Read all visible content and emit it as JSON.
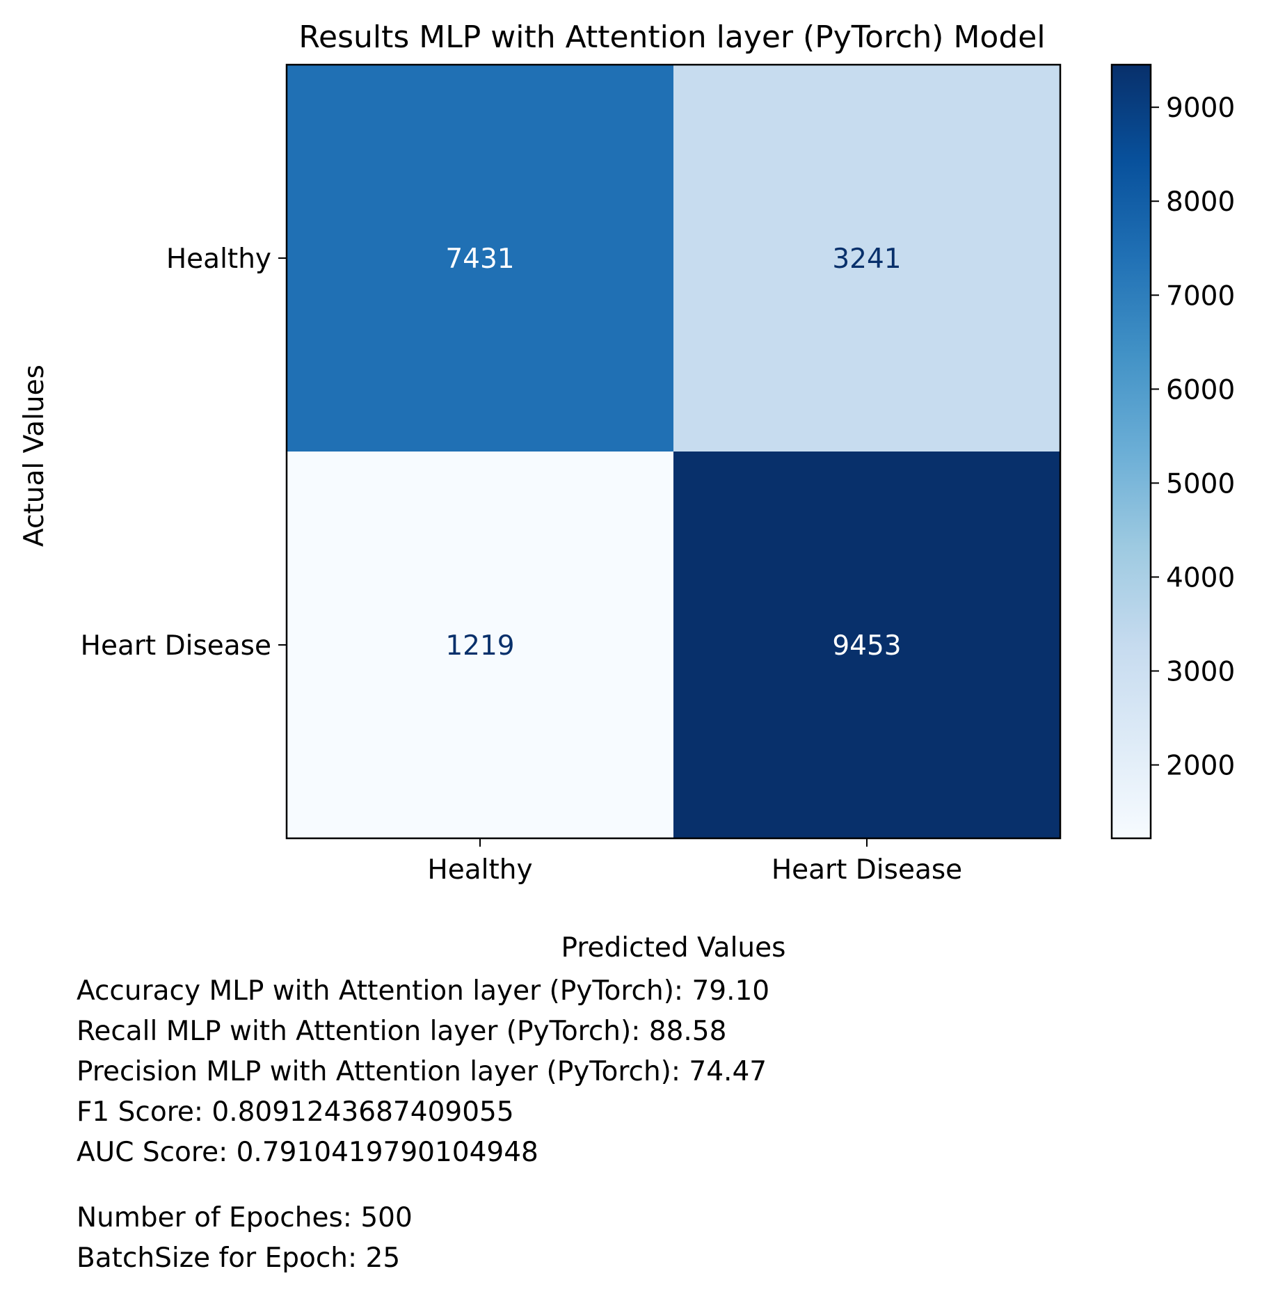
{
  "chart_data": {
    "type": "heatmap",
    "title": "Results MLP with Attention layer (PyTorch) Model",
    "xlabel": "Predicted Values",
    "ylabel": "Actual Values",
    "x_categories": [
      "Healthy",
      "Heart Disease"
    ],
    "y_categories": [
      "Healthy",
      "Heart Disease"
    ],
    "values": [
      [
        7431,
        3241
      ],
      [
        1219,
        9453
      ]
    ],
    "colormap": "Blues",
    "colorbar": {
      "range": [
        1219,
        9453
      ],
      "ticks": [
        2000,
        3000,
        4000,
        5000,
        6000,
        7000,
        8000,
        9000
      ]
    },
    "grid": false
  },
  "metrics": {
    "accuracy": "Accuracy MLP with Attention layer (PyTorch): 79.10",
    "recall": "Recall MLP with Attention layer (PyTorch): 88.58",
    "precision": "Precision MLP with Attention layer (PyTorch): 74.47",
    "f1": "F1 Score: 0.8091243687409055",
    "auc": "AUC Score: 0.7910419790104948",
    "epochs": "Number of Epoches: 500",
    "batch_size": "BatchSize for Epoch: 25"
  }
}
